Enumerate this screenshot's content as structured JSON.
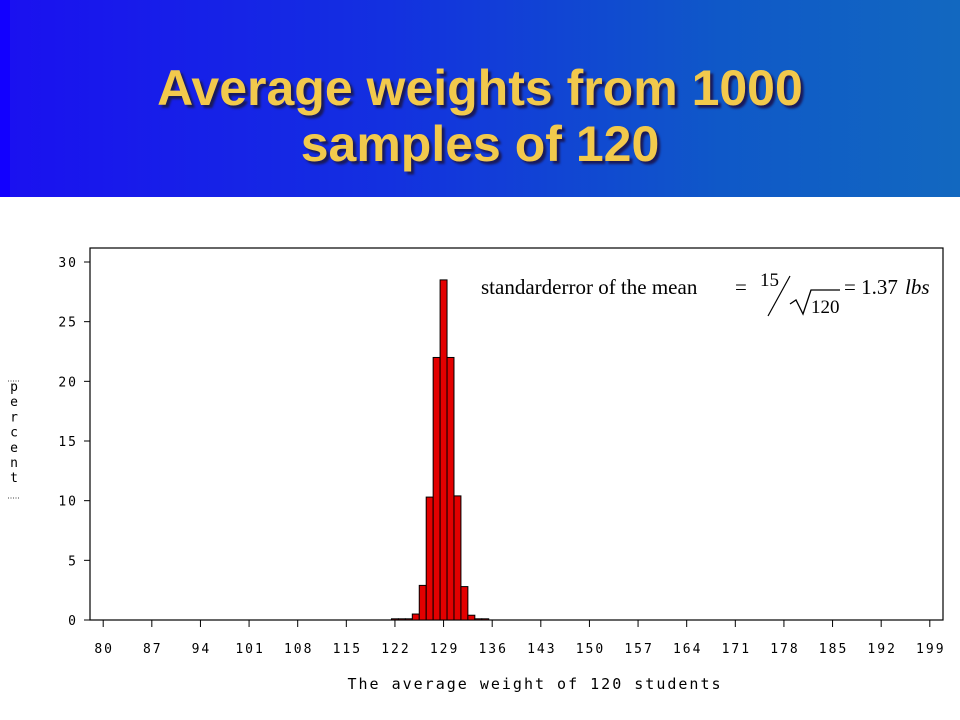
{
  "title": {
    "line1": "Average weights from 1000",
    "line2": "samples of 120"
  },
  "colors": {
    "bar_fill": "#e30000",
    "title_text": "#f2c94c",
    "header_left": "#1a10f0",
    "header_right": "#1268c0"
  },
  "annotation": {
    "text": "standarderror of the mean",
    "equals": "=",
    "numerator": "15",
    "denominator": "120",
    "equals2": "= 1.37",
    "unit": "lbs"
  },
  "chart_data": {
    "type": "bar",
    "xlabel": "The average weight of 120 students",
    "ylabel": "percent",
    "x_ticks": [
      "80",
      "87",
      "94",
      "101",
      "108",
      "115",
      "122",
      "129",
      "136",
      "143",
      "150",
      "157",
      "164",
      "171",
      "178",
      "185",
      "192",
      "199"
    ],
    "x_range": [
      78.1,
      200.9
    ],
    "ylim": [
      0,
      30
    ],
    "y_ticks": [
      0,
      5,
      10,
      15,
      20,
      25,
      30
    ],
    "bin_width": 1,
    "bars": [
      {
        "x": 122,
        "value": 0.1
      },
      {
        "x": 123,
        "value": 0.1
      },
      {
        "x": 124,
        "value": 0.1
      },
      {
        "x": 125,
        "value": 0.5
      },
      {
        "x": 126,
        "value": 2.9
      },
      {
        "x": 127,
        "value": 10.3
      },
      {
        "x": 128,
        "value": 22.0
      },
      {
        "x": 129,
        "value": 28.5
      },
      {
        "x": 130,
        "value": 22.0
      },
      {
        "x": 131,
        "value": 10.4
      },
      {
        "x": 132,
        "value": 2.8
      },
      {
        "x": 133,
        "value": 0.4
      },
      {
        "x": 134,
        "value": 0.1
      },
      {
        "x": 135,
        "value": 0.1
      }
    ],
    "grid": false,
    "legend": "none"
  }
}
